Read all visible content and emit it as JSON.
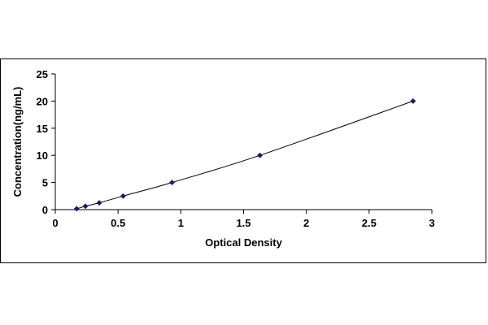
{
  "chart_data": {
    "type": "scatter",
    "title": "",
    "xlabel": "Optical Density",
    "ylabel": "Concentration(ng/mL)",
    "xlim": [
      0,
      3
    ],
    "ylim": [
      0,
      25
    ],
    "xticks": [
      0,
      0.5,
      1,
      1.5,
      2,
      2.5,
      3
    ],
    "xtick_labels": [
      "0",
      "0.5",
      "1",
      "1.5",
      "2",
      "2.5",
      "3"
    ],
    "yticks": [
      0,
      5,
      10,
      15,
      20,
      25
    ],
    "ytick_labels": [
      "0",
      "5",
      "10",
      "15",
      "20",
      "25"
    ],
    "grid": false,
    "legend": "none",
    "marker": "diamond",
    "trendline": "smooth curve",
    "point_color": "#1a1a6e",
    "line_color": "#000000",
    "series": [
      {
        "x": [
          0.17,
          0.24,
          0.35,
          0.54,
          0.93,
          1.63,
          2.85
        ],
        "y": [
          0.16,
          0.63,
          1.25,
          2.5,
          5,
          10,
          20
        ]
      }
    ]
  }
}
